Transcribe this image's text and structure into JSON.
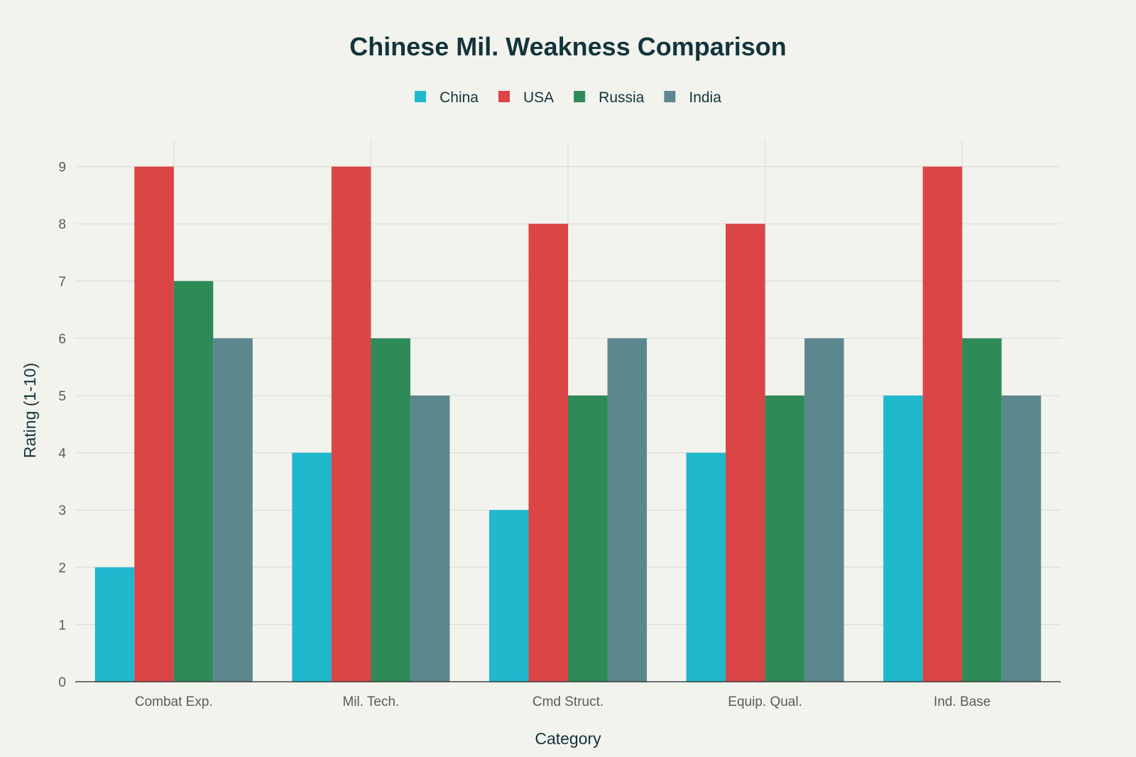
{
  "chart_data": {
    "type": "bar",
    "title": "Chinese Mil. Weakness Comparison",
    "xlabel": "Category",
    "ylabel": "Rating (1-10)",
    "categories": [
      "Combat Exp.",
      "Mil. Tech.",
      "Cmd Struct.",
      "Equip. Qual.",
      "Ind. Base"
    ],
    "series": [
      {
        "name": "China",
        "color": "#1fb8cd",
        "values": [
          2,
          4,
          3,
          4,
          5
        ]
      },
      {
        "name": "USA",
        "color": "#db4545",
        "values": [
          9,
          9,
          8,
          8,
          9
        ]
      },
      {
        "name": "Russia",
        "color": "#2e8b57",
        "values": [
          7,
          6,
          5,
          5,
          6
        ]
      },
      {
        "name": "India",
        "color": "#5d878f",
        "values": [
          6,
          5,
          6,
          6,
          5
        ]
      }
    ],
    "ylim": [
      0,
      9.5
    ],
    "yticks": [
      0,
      1,
      2,
      3,
      4,
      5,
      6,
      7,
      8,
      9
    ],
    "grid": true,
    "legend_position": "top-center"
  }
}
